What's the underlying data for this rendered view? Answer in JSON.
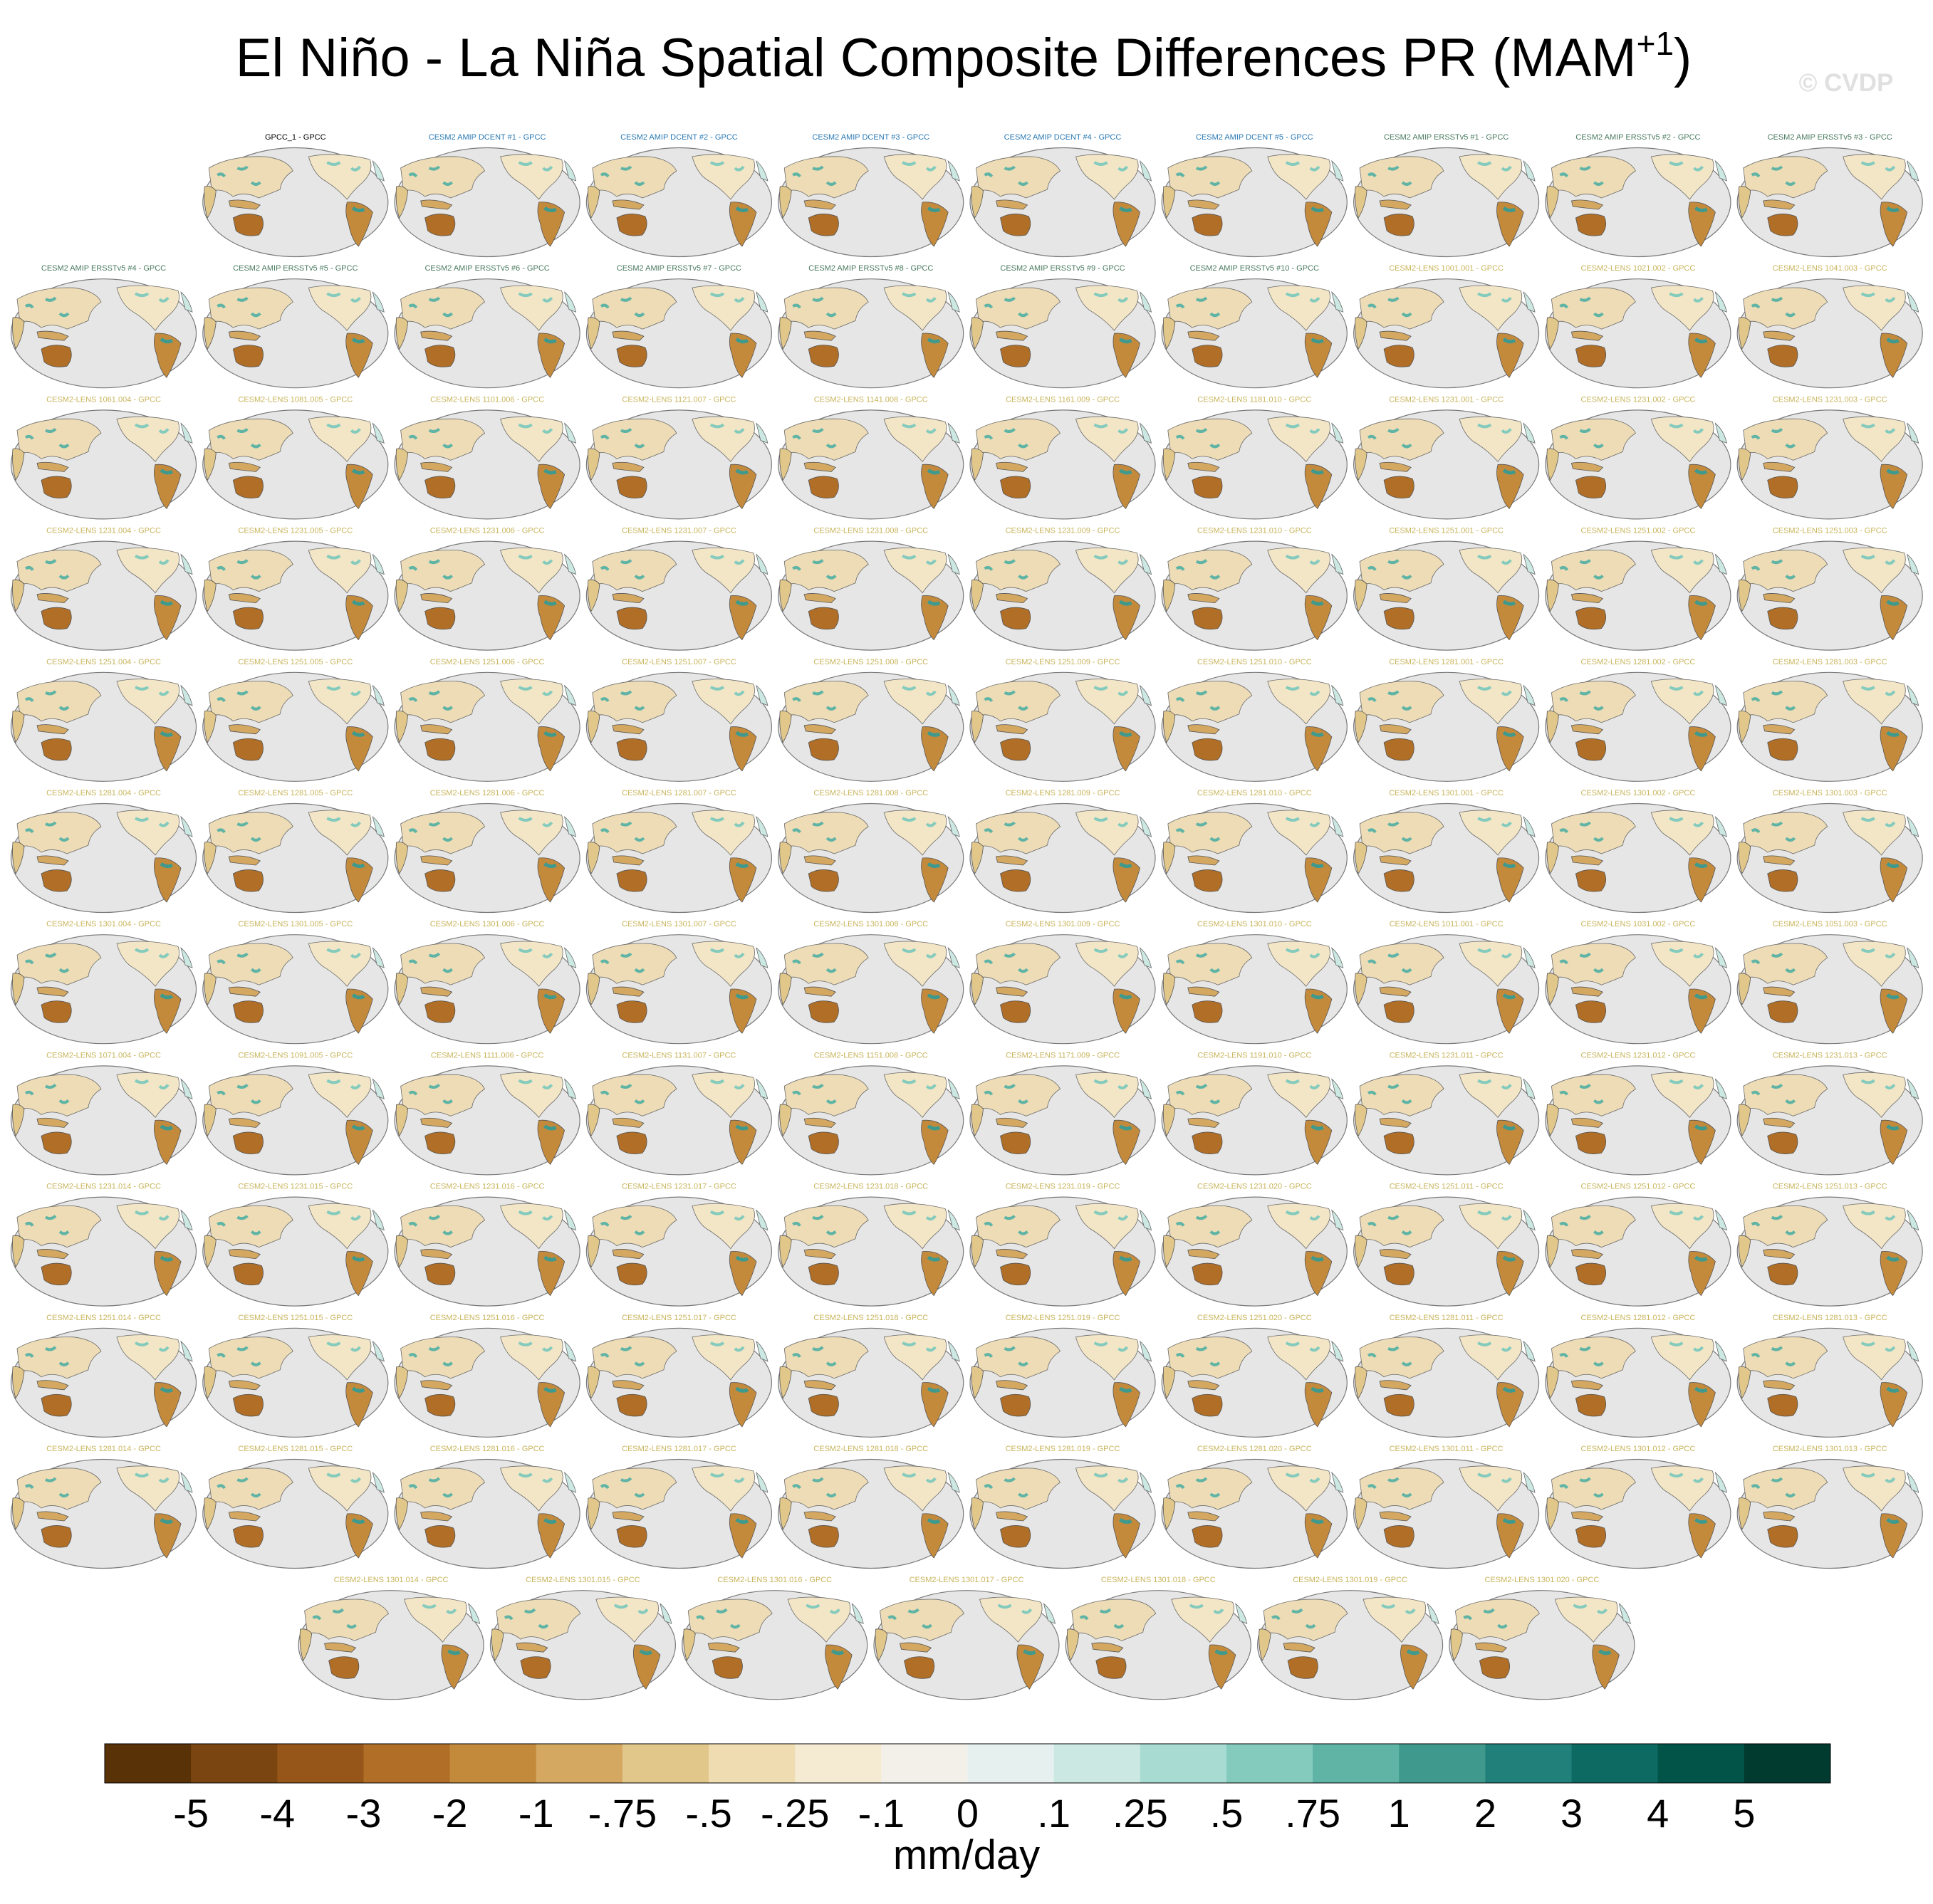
{
  "header": {
    "title": "El Niño - La Niña Spatial Composite Differences PR (MAM",
    "superscript": "+1",
    "title_end": ")",
    "watermark": "© CVDP"
  },
  "panels": [
    {
      "label": "GPCC_1 - GPCC",
      "color": "#000000"
    },
    {
      "label": "CESM2 AMIP DCENT #1 - GPCC",
      "color": "#2878b4"
    },
    {
      "label": "CESM2 AMIP DCENT #2 - GPCC",
      "color": "#2878b4"
    },
    {
      "label": "CESM2 AMIP DCENT #3 - GPCC",
      "color": "#2878b4"
    },
    {
      "label": "CESM2 AMIP DCENT #4 - GPCC",
      "color": "#2878b4"
    },
    {
      "label": "CESM2 AMIP DCENT #5 - GPCC",
      "color": "#2878b4"
    },
    {
      "label": "CESM2 AMIP ERSSTv5 #1 - GPCC",
      "color": "#4a7a60"
    },
    {
      "label": "CESM2 AMIP ERSSTv5 #2 - GPCC",
      "color": "#4a7a60"
    },
    {
      "label": "CESM2 AMIP ERSSTv5 #3 - GPCC",
      "color": "#4a7a60"
    },
    {
      "label": "CESM2 AMIP ERSSTv5 #4 - GPCC",
      "color": "#4a7a60"
    },
    {
      "label": "CESM2 AMIP ERSSTv5 #5 - GPCC",
      "color": "#4a7a60"
    },
    {
      "label": "CESM2 AMIP ERSSTv5 #6 - GPCC",
      "color": "#4a7a60"
    },
    {
      "label": "CESM2 AMIP ERSSTv5 #7 - GPCC",
      "color": "#4a7a60"
    },
    {
      "label": "CESM2 AMIP ERSSTv5 #8 - GPCC",
      "color": "#4a7a60"
    },
    {
      "label": "CESM2 AMIP ERSSTv5 #9 - GPCC",
      "color": "#4a7a60"
    },
    {
      "label": "CESM2 AMIP ERSSTv5 #10 - GPCC",
      "color": "#4a7a60"
    },
    {
      "label": "CESM2-LENS 1001.001 - GPCC",
      "color": "#c8b45a"
    },
    {
      "label": "CESM2-LENS 1021.002 - GPCC",
      "color": "#c8b45a"
    },
    {
      "label": "CESM2-LENS 1041.003 - GPCC",
      "color": "#c8b45a"
    },
    {
      "label": "CESM2-LENS 1061.004 - GPCC",
      "color": "#c8b45a"
    },
    {
      "label": "CESM2-LENS 1081.005 - GPCC",
      "color": "#c8b45a"
    },
    {
      "label": "CESM2-LENS 1101.006 - GPCC",
      "color": "#c8b45a"
    },
    {
      "label": "CESM2-LENS 1121.007 - GPCC",
      "color": "#c8b45a"
    },
    {
      "label": "CESM2-LENS 1141.008 - GPCC",
      "color": "#c8b45a"
    },
    {
      "label": "CESM2-LENS 1161.009 - GPCC",
      "color": "#c8b45a"
    },
    {
      "label": "CESM2-LENS 1181.010 - GPCC",
      "color": "#c8b45a"
    },
    {
      "label": "CESM2-LENS 1231.001 - GPCC",
      "color": "#c8b45a"
    },
    {
      "label": "CESM2-LENS 1231.002 - GPCC",
      "color": "#c8b45a"
    },
    {
      "label": "CESM2-LENS 1231.003 - GPCC",
      "color": "#c8b45a"
    },
    {
      "label": "CESM2-LENS 1231.004 - GPCC",
      "color": "#c8b45a"
    },
    {
      "label": "CESM2-LENS 1231.005 - GPCC",
      "color": "#c8b45a"
    },
    {
      "label": "CESM2-LENS 1231.006 - GPCC",
      "color": "#c8b45a"
    },
    {
      "label": "CESM2-LENS 1231.007 - GPCC",
      "color": "#c8b45a"
    },
    {
      "label": "CESM2-LENS 1231.008 - GPCC",
      "color": "#c8b45a"
    },
    {
      "label": "CESM2-LENS 1231.009 - GPCC",
      "color": "#c8b45a"
    },
    {
      "label": "CESM2-LENS 1231.010 - GPCC",
      "color": "#c8b45a"
    },
    {
      "label": "CESM2-LENS 1251.001 - GPCC",
      "color": "#c8b45a"
    },
    {
      "label": "CESM2-LENS 1251.002 - GPCC",
      "color": "#c8b45a"
    },
    {
      "label": "CESM2-LENS 1251.003 - GPCC",
      "color": "#c8b45a"
    },
    {
      "label": "CESM2-LENS 1251.004 - GPCC",
      "color": "#c8b45a"
    },
    {
      "label": "CESM2-LENS 1251.005 - GPCC",
      "color": "#c8b45a"
    },
    {
      "label": "CESM2-LENS 1251.006 - GPCC",
      "color": "#c8b45a"
    },
    {
      "label": "CESM2-LENS 1251.007 - GPCC",
      "color": "#c8b45a"
    },
    {
      "label": "CESM2-LENS 1251.008 - GPCC",
      "color": "#c8b45a"
    },
    {
      "label": "CESM2-LENS 1251.009 - GPCC",
      "color": "#c8b45a"
    },
    {
      "label": "CESM2-LENS 1251.010 - GPCC",
      "color": "#c8b45a"
    },
    {
      "label": "CESM2-LENS 1281.001 - GPCC",
      "color": "#c8b45a"
    },
    {
      "label": "CESM2-LENS 1281.002 - GPCC",
      "color": "#c8b45a"
    },
    {
      "label": "CESM2-LENS 1281.003 - GPCC",
      "color": "#c8b45a"
    },
    {
      "label": "CESM2-LENS 1281.004 - GPCC",
      "color": "#c8b45a"
    },
    {
      "label": "CESM2-LENS 1281.005 - GPCC",
      "color": "#c8b45a"
    },
    {
      "label": "CESM2-LENS 1281.006 - GPCC",
      "color": "#c8b45a"
    },
    {
      "label": "CESM2-LENS 1281.007 - GPCC",
      "color": "#c8b45a"
    },
    {
      "label": "CESM2-LENS 1281.008 - GPCC",
      "color": "#c8b45a"
    },
    {
      "label": "CESM2-LENS 1281.009 - GPCC",
      "color": "#c8b45a"
    },
    {
      "label": "CESM2-LENS 1281.010 - GPCC",
      "color": "#c8b45a"
    },
    {
      "label": "CESM2-LENS 1301.001 - GPCC",
      "color": "#c8b45a"
    },
    {
      "label": "CESM2-LENS 1301.002 - GPCC",
      "color": "#c8b45a"
    },
    {
      "label": "CESM2-LENS 1301.003 - GPCC",
      "color": "#c8b45a"
    },
    {
      "label": "CESM2-LENS 1301.004 - GPCC",
      "color": "#c8b45a"
    },
    {
      "label": "CESM2-LENS 1301.005 - GPCC",
      "color": "#c8b45a"
    },
    {
      "label": "CESM2-LENS 1301.006 - GPCC",
      "color": "#c8b45a"
    },
    {
      "label": "CESM2-LENS 1301.007 - GPCC",
      "color": "#c8b45a"
    },
    {
      "label": "CESM2-LENS 1301.008 - GPCC",
      "color": "#c8b45a"
    },
    {
      "label": "CESM2-LENS 1301.009 - GPCC",
      "color": "#c8b45a"
    },
    {
      "label": "CESM2-LENS 1301.010 - GPCC",
      "color": "#c8b45a"
    },
    {
      "label": "CESM2-LENS 1011.001 - GPCC",
      "color": "#c8b45a"
    },
    {
      "label": "CESM2-LENS 1031.002 - GPCC",
      "color": "#c8b45a"
    },
    {
      "label": "CESM2-LENS 1051.003 - GPCC",
      "color": "#c8b45a"
    },
    {
      "label": "CESM2-LENS 1071.004 - GPCC",
      "color": "#c8b45a"
    },
    {
      "label": "CESM2-LENS 1091.005 - GPCC",
      "color": "#c8b45a"
    },
    {
      "label": "CESM2-LENS 1111.006 - GPCC",
      "color": "#c8b45a"
    },
    {
      "label": "CESM2-LENS 1131.007 - GPCC",
      "color": "#c8b45a"
    },
    {
      "label": "CESM2-LENS 1151.008 - GPCC",
      "color": "#c8b45a"
    },
    {
      "label": "CESM2-LENS 1171.009 - GPCC",
      "color": "#c8b45a"
    },
    {
      "label": "CESM2-LENS 1191.010 - GPCC",
      "color": "#c8b45a"
    },
    {
      "label": "CESM2-LENS 1231.011 - GPCC",
      "color": "#c8b45a"
    },
    {
      "label": "CESM2-LENS 1231.012 - GPCC",
      "color": "#c8b45a"
    },
    {
      "label": "CESM2-LENS 1231.013 - GPCC",
      "color": "#c8b45a"
    },
    {
      "label": "CESM2-LENS 1231.014 - GPCC",
      "color": "#c8b45a"
    },
    {
      "label": "CESM2-LENS 1231.015 - GPCC",
      "color": "#c8b45a"
    },
    {
      "label": "CESM2-LENS 1231.016 - GPCC",
      "color": "#c8b45a"
    },
    {
      "label": "CESM2-LENS 1231.017 - GPCC",
      "color": "#c8b45a"
    },
    {
      "label": "CESM2-LENS 1231.018 - GPCC",
      "color": "#c8b45a"
    },
    {
      "label": "CESM2-LENS 1231.019 - GPCC",
      "color": "#c8b45a"
    },
    {
      "label": "CESM2-LENS 1231.020 - GPCC",
      "color": "#c8b45a"
    },
    {
      "label": "CESM2-LENS 1251.011 - GPCC",
      "color": "#c8b45a"
    },
    {
      "label": "CESM2-LENS 1251.012 - GPCC",
      "color": "#c8b45a"
    },
    {
      "label": "CESM2-LENS 1251.013 - GPCC",
      "color": "#c8b45a"
    },
    {
      "label": "CESM2-LENS 1251.014 - GPCC",
      "color": "#c8b45a"
    },
    {
      "label": "CESM2-LENS 1251.015 - GPCC",
      "color": "#c8b45a"
    },
    {
      "label": "CESM2-LENS 1251.016 - GPCC",
      "color": "#c8b45a"
    },
    {
      "label": "CESM2-LENS 1251.017 - GPCC",
      "color": "#c8b45a"
    },
    {
      "label": "CESM2-LENS 1251.018 - GPCC",
      "color": "#c8b45a"
    },
    {
      "label": "CESM2-LENS 1251.019 - GPCC",
      "color": "#c8b45a"
    },
    {
      "label": "CESM2-LENS 1251.020 - GPCC",
      "color": "#c8b45a"
    },
    {
      "label": "CESM2-LENS 1281.011 - GPCC",
      "color": "#c8b45a"
    },
    {
      "label": "CESM2-LENS 1281.012 - GPCC",
      "color": "#c8b45a"
    },
    {
      "label": "CESM2-LENS 1281.013 - GPCC",
      "color": "#c8b45a"
    },
    {
      "label": "CESM2-LENS 1281.014 - GPCC",
      "color": "#c8b45a"
    },
    {
      "label": "CESM2-LENS 1281.015 - GPCC",
      "color": "#c8b45a"
    },
    {
      "label": "CESM2-LENS 1281.016 - GPCC",
      "color": "#c8b45a"
    },
    {
      "label": "CESM2-LENS 1281.017 - GPCC",
      "color": "#c8b45a"
    },
    {
      "label": "CESM2-LENS 1281.018 - GPCC",
      "color": "#c8b45a"
    },
    {
      "label": "CESM2-LENS 1281.019 - GPCC",
      "color": "#c8b45a"
    },
    {
      "label": "CESM2-LENS 1281.020 - GPCC",
      "color": "#c8b45a"
    },
    {
      "label": "CESM2-LENS 1301.011 - GPCC",
      "color": "#c8b45a"
    },
    {
      "label": "CESM2-LENS 1301.012 - GPCC",
      "color": "#c8b45a"
    },
    {
      "label": "CESM2-LENS 1301.013 - GPCC",
      "color": "#c8b45a"
    },
    {
      "label": "CESM2-LENS 1301.014 - GPCC",
      "color": "#c8b45a"
    },
    {
      "label": "CESM2-LENS 1301.015 - GPCC",
      "color": "#c8b45a"
    },
    {
      "label": "CESM2-LENS 1301.016 - GPCC",
      "color": "#c8b45a"
    },
    {
      "label": "CESM2-LENS 1301.017 - GPCC",
      "color": "#c8b45a"
    },
    {
      "label": "CESM2-LENS 1301.018 - GPCC",
      "color": "#c8b45a"
    },
    {
      "label": "CESM2-LENS 1301.019 - GPCC",
      "color": "#c8b45a"
    },
    {
      "label": "CESM2-LENS 1301.020 - GPCC",
      "color": "#c8b45a"
    }
  ],
  "colorbar": {
    "colors": [
      "#5a3207",
      "#7a4510",
      "#96561a",
      "#b06e26",
      "#c48a3c",
      "#d4a860",
      "#e2c78b",
      "#efdcb0",
      "#f5ead2",
      "#f3f0ea",
      "#e6f0ee",
      "#cbe8e2",
      "#a8dcd2",
      "#84cbbd",
      "#5fb4a6",
      "#3f9a8d",
      "#21807a",
      "#0c6a62",
      "#035448",
      "#013a2f"
    ],
    "levels": [
      "-5",
      "-4",
      "-3",
      "-2",
      "-1",
      "-.75",
      "-.5",
      "-.25",
      "-.1",
      "0",
      ".1",
      ".25",
      ".5",
      ".75",
      "1",
      "2",
      "3",
      "4",
      "5"
    ],
    "units": "mm/day"
  }
}
